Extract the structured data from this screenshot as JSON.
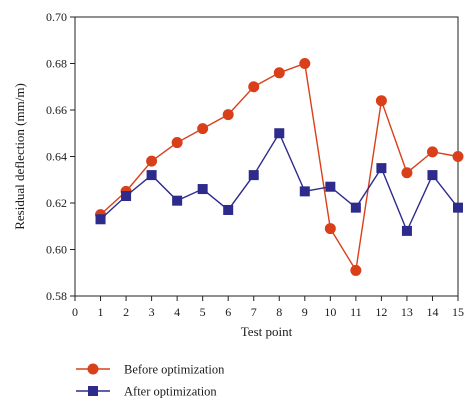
{
  "chart_data": {
    "type": "line",
    "xlabel": "Test point",
    "ylabel": "Residual deflection (mm/m)",
    "xlim": [
      0,
      15
    ],
    "ylim": [
      0.58,
      0.7
    ],
    "x_ticks": [
      "0",
      "1",
      "2",
      "3",
      "4",
      "5",
      "6",
      "7",
      "8",
      "9",
      "10",
      "11",
      "12",
      "13",
      "14",
      "15"
    ],
    "y_ticks": [
      "0.58",
      "0.60",
      "0.62",
      "0.64",
      "0.66",
      "0.68",
      "0.70"
    ],
    "x": [
      1,
      2,
      3,
      4,
      5,
      6,
      7,
      8,
      9,
      10,
      11,
      12,
      13,
      14,
      15
    ],
    "series": [
      {
        "name": "Before optimization",
        "color": "#d9401a",
        "marker": "circle",
        "values": [
          0.615,
          0.625,
          0.638,
          0.646,
          0.652,
          0.658,
          0.67,
          0.676,
          0.68,
          0.609,
          0.591,
          0.664,
          0.633,
          0.642,
          0.64
        ]
      },
      {
        "name": "After optimization",
        "color": "#2d2b8c",
        "marker": "square",
        "values": [
          0.613,
          0.623,
          0.632,
          0.621,
          0.626,
          0.617,
          0.632,
          0.65,
          0.625,
          0.627,
          0.618,
          0.635,
          0.608,
          0.632,
          0.618
        ]
      }
    ],
    "grid": false,
    "legend_position": "bottom-left"
  }
}
